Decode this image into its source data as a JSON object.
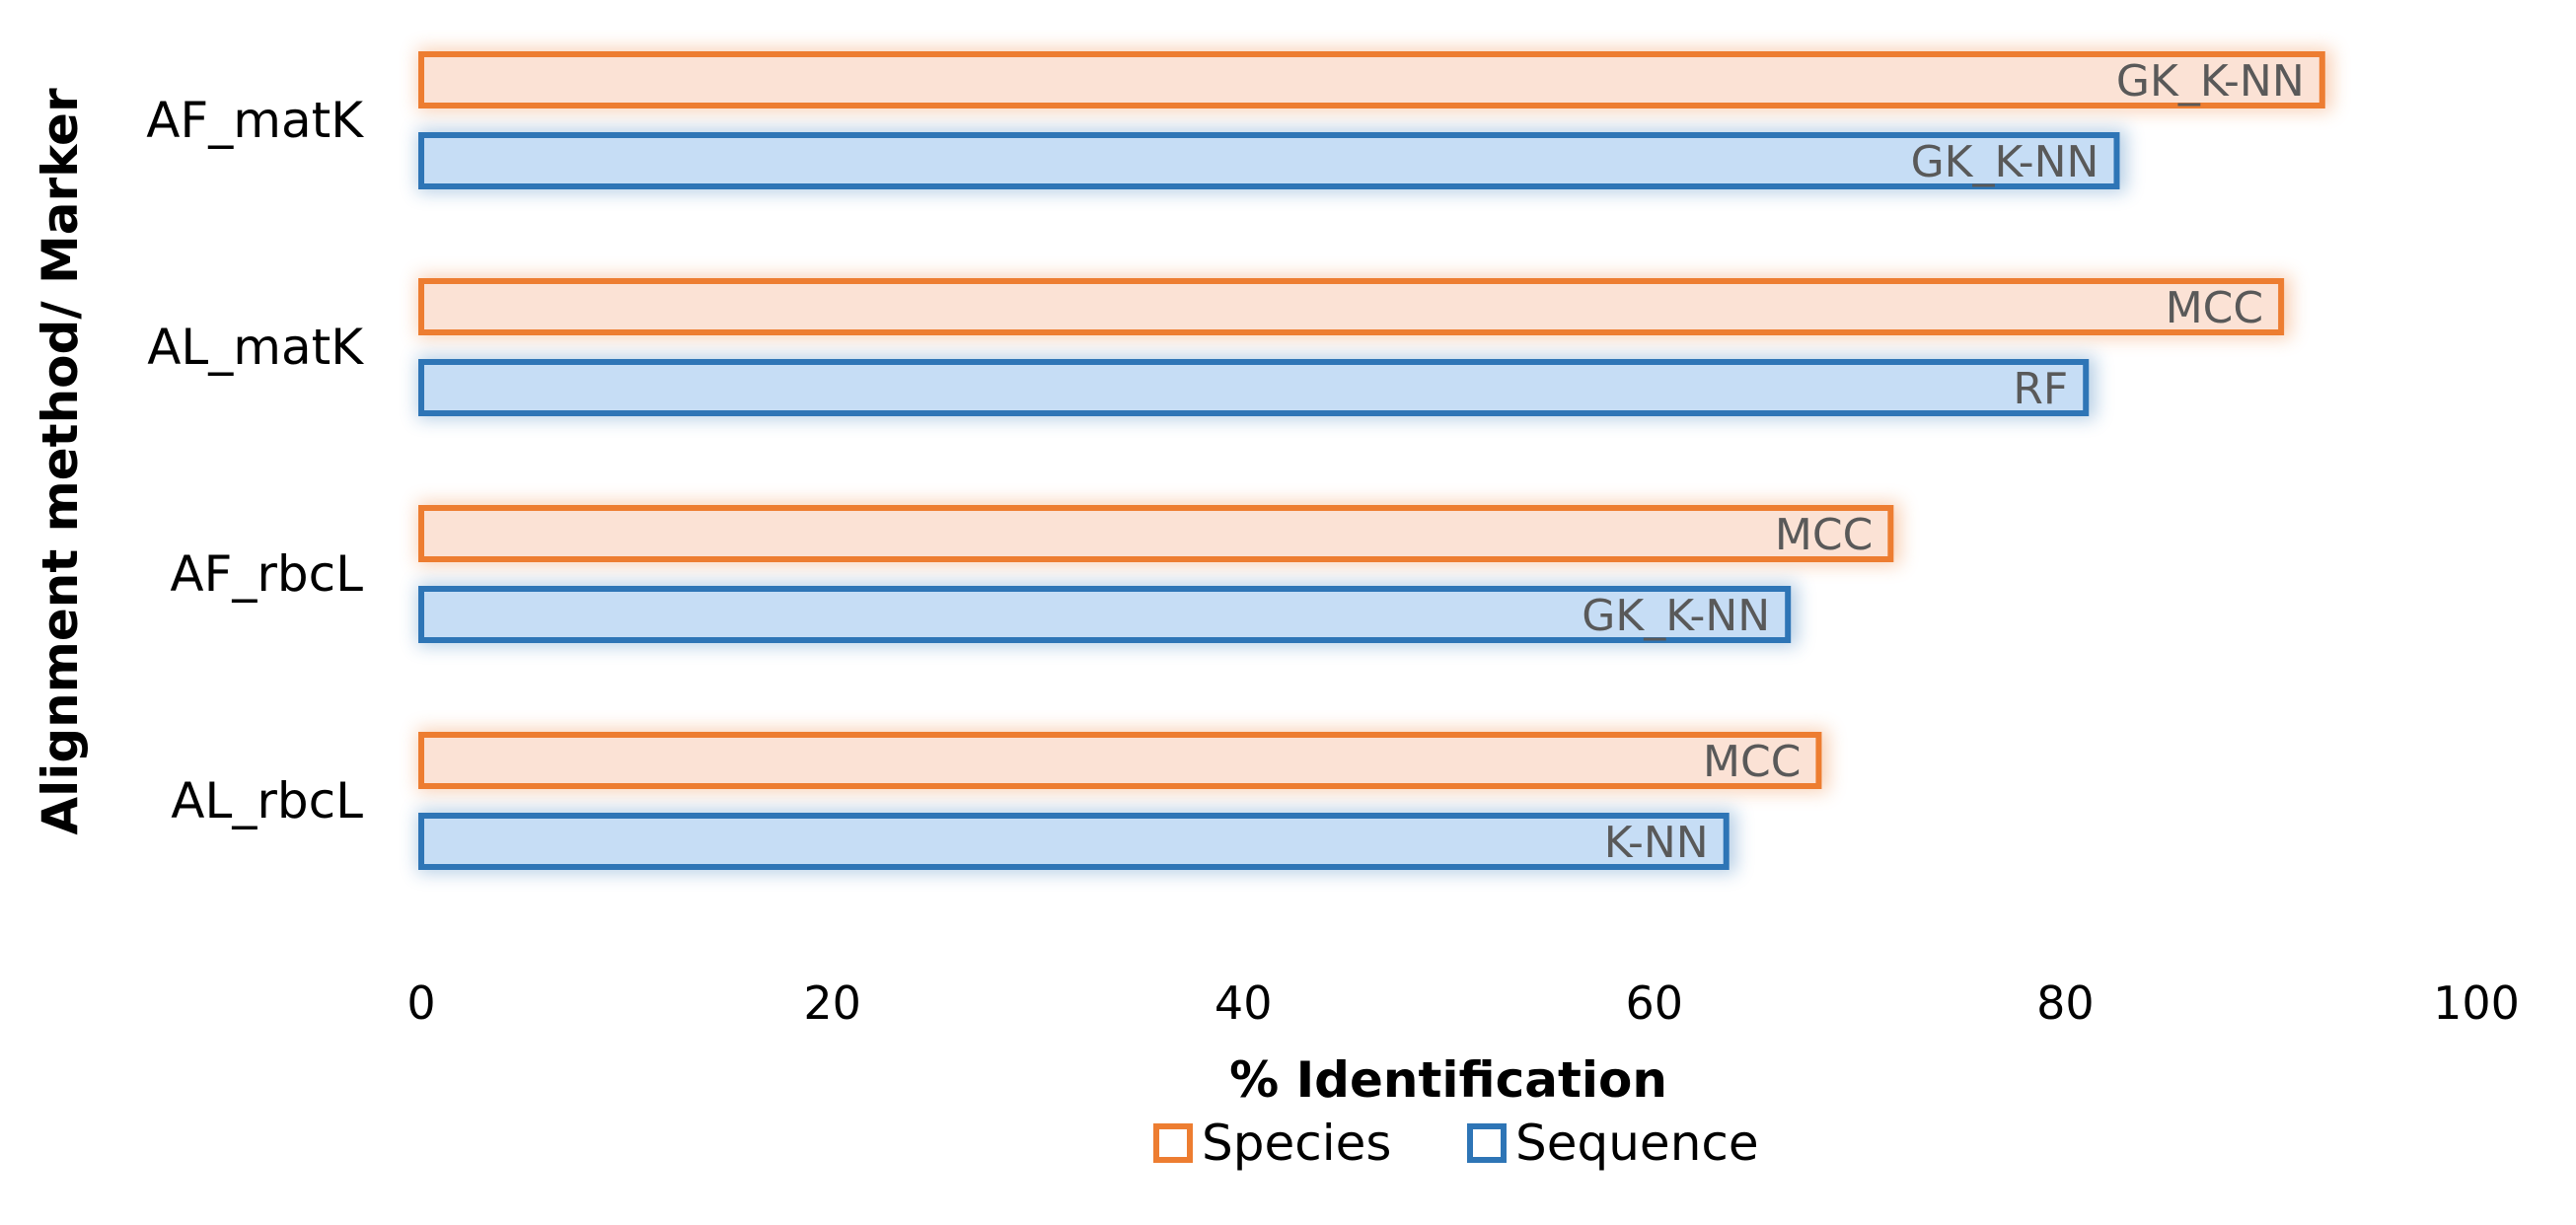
{
  "chart_data": {
    "type": "bar",
    "orientation": "horizontal",
    "categories": [
      "AF_matK",
      "AL_matK",
      "AF_rbcL",
      "AL_rbcL"
    ],
    "series": [
      {
        "name": "Species",
        "color": "#ED7D31",
        "fill": "#FBE2D5",
        "values": [
          92.5,
          90.5,
          71.5,
          68
        ],
        "labels": [
          "GK_K-NN",
          "MCC",
          "MCC",
          "MCC"
        ]
      },
      {
        "name": "Sequence",
        "color": "#2E75B6",
        "fill": "#C6DDF5",
        "values": [
          82.5,
          81,
          66.5,
          63.5
        ],
        "labels": [
          "GK_K-NN",
          "RF",
          "GK_K-NN",
          "K-NN"
        ]
      }
    ],
    "xlabel": "% Identification",
    "ylabel": "Alignment method/ Marker",
    "xlim": [
      0,
      100
    ],
    "xticks": [
      "0",
      "20",
      "40",
      "60",
      "80",
      "100"
    ],
    "grid": false,
    "legend_position": "bottom"
  }
}
